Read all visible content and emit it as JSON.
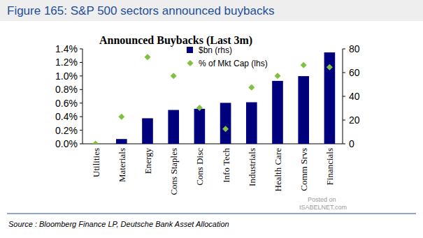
{
  "chart_data": {
    "type": "bar",
    "title": "Figure 165: S&P 500 sectors announced buybacks",
    "subtitle": "Announced Buybacks (Last 3m)",
    "categories": [
      "Utilities",
      "Materials",
      "Energy",
      "Cons Staples",
      "Cons Disc",
      "Info Tech",
      "Industrials",
      "Health Care",
      "Comm Srvs",
      "Financials"
    ],
    "series": [
      {
        "name": "$bn (rhs)",
        "type": "bar",
        "color": "#00007f",
        "axis": "y2",
        "values": [
          0,
          4,
          21.5,
          28.5,
          29.5,
          34.5,
          35,
          53,
          57,
          77
        ]
      },
      {
        "name": "% of Mkt Cap (lhs)",
        "type": "scatter",
        "marker": "diamond",
        "color": "#7fc241",
        "values": [
          0.0,
          0.4,
          1.28,
          1.0,
          0.53,
          0.22,
          0.83,
          1.0,
          1.16,
          1.13
        ]
      }
    ],
    "ylim": [
      0,
      1.4
    ],
    "yticks": [
      {
        "value": 0,
        "label": "0.0%"
      },
      {
        "value": 0.2,
        "label": "0.2%"
      },
      {
        "value": 0.4,
        "label": "0.4%"
      },
      {
        "value": 0.6,
        "label": "0.6%"
      },
      {
        "value": 0.8,
        "label": "0.8%"
      },
      {
        "value": 1.0,
        "label": "1.0%"
      },
      {
        "value": 1.2,
        "label": "1.2%"
      },
      {
        "value": 1.4,
        "label": "1.4%"
      }
    ],
    "y2lim": [
      0,
      80
    ],
    "y2ticks": [
      0,
      20,
      40,
      60,
      80
    ],
    "legend": "top",
    "source": "Source : Bloomberg Finance LP, Deutsche Bank Asset Allocation",
    "annotations": [
      "Posted on",
      "ISABELNET.com"
    ]
  }
}
